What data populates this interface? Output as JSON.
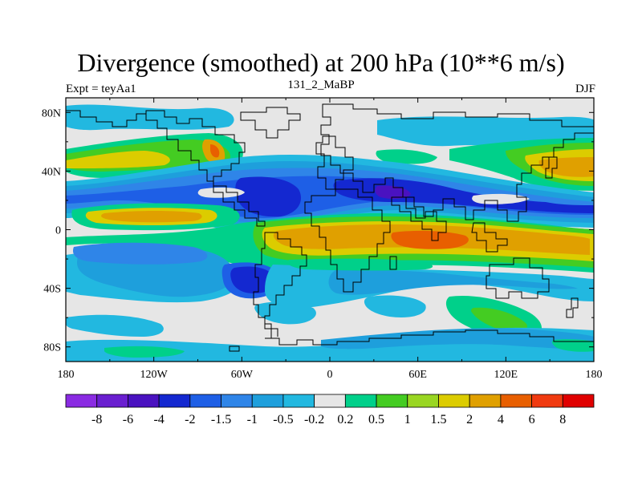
{
  "title": "Divergence (smoothed) at 200 hPa (10**6 m/s)",
  "subtitle": {
    "left": "Expt = teyAa1",
    "center": "131_2_MaBP",
    "right": "DJF"
  },
  "map": {
    "lon_range": [
      -180,
      180
    ],
    "lat_range": [
      -90,
      90
    ],
    "x_ticks": [
      {
        "value": -180,
        "label": "180"
      },
      {
        "value": -120,
        "label": "120W"
      },
      {
        "value": -60,
        "label": "60W"
      },
      {
        "value": 0,
        "label": "0"
      },
      {
        "value": 60,
        "label": "60E"
      },
      {
        "value": 120,
        "label": "120E"
      },
      {
        "value": 180,
        "label": "180"
      }
    ],
    "y_ticks": [
      {
        "value": 80,
        "label": "80N"
      },
      {
        "value": 40,
        "label": "40N"
      },
      {
        "value": 0,
        "label": "0"
      },
      {
        "value": -40,
        "label": "40S"
      },
      {
        "value": -80,
        "label": "80S"
      }
    ],
    "background_color": "#e6e6e6"
  },
  "legend": {
    "colors": [
      "#8a2be2",
      "#6a1fd0",
      "#4a12c0",
      "#1428d0",
      "#1e5fe6",
      "#2f85e8",
      "#1e9fdc",
      "#22b8e0",
      "#e6e6e6",
      "#00d08a",
      "#44cc22",
      "#99d622",
      "#dccc00",
      "#e0a000",
      "#e85f00",
      "#f03a10",
      "#e00000"
    ],
    "labels": [
      "-8",
      "-6",
      "-4",
      "-2",
      "-1.5",
      "-1",
      "-0.5",
      "-0.2",
      "0.2",
      "0.5",
      "1",
      "1.5",
      "2",
      "4",
      "6",
      "8"
    ]
  }
}
